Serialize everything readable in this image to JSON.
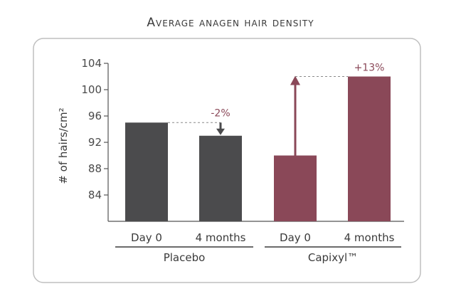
{
  "chart_data": {
    "type": "bar",
    "title": "Average anagen hair density",
    "ylabel": "# of hairs/cm²",
    "xlabel": "",
    "ylim": [
      80,
      104
    ],
    "yticks": [
      84,
      88,
      92,
      96,
      100,
      104
    ],
    "groups": [
      {
        "name": "Placebo",
        "color": "#4b4b4d",
        "bars": [
          {
            "category": "Day 0",
            "value": 95
          },
          {
            "category": "4 months",
            "value": 93
          }
        ],
        "change_label": "-2%",
        "change_color": "#8a4858"
      },
      {
        "name": "Capixyl™",
        "color": "#8a4858",
        "bars": [
          {
            "category": "Day 0",
            "value": 90
          },
          {
            "category": "4 months",
            "value": 102
          }
        ],
        "change_label": "+13%",
        "change_color": "#8a4858"
      }
    ]
  }
}
